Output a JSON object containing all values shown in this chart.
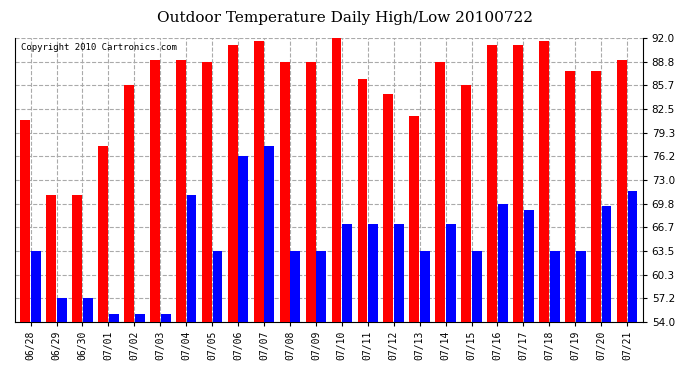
{
  "title": "Outdoor Temperature Daily High/Low 20100722",
  "copyright": "Copyright 2010 Cartronics.com",
  "dates": [
    "06/28",
    "06/29",
    "06/30",
    "07/01",
    "07/02",
    "07/03",
    "07/04",
    "07/05",
    "07/06",
    "07/07",
    "07/08",
    "07/09",
    "07/10",
    "07/11",
    "07/12",
    "07/13",
    "07/14",
    "07/15",
    "07/16",
    "07/17",
    "07/18",
    "07/19",
    "07/20",
    "07/21"
  ],
  "highs": [
    81.0,
    71.0,
    71.0,
    77.5,
    85.7,
    89.0,
    89.0,
    88.8,
    91.0,
    91.5,
    88.8,
    88.8,
    92.0,
    86.5,
    84.5,
    81.5,
    88.8,
    85.7,
    91.0,
    91.0,
    91.5,
    87.5,
    87.5,
    89.0
  ],
  "lows": [
    63.5,
    57.2,
    57.2,
    55.0,
    55.0,
    55.0,
    71.0,
    63.5,
    76.2,
    77.5,
    63.5,
    63.5,
    67.0,
    67.0,
    67.0,
    63.5,
    67.0,
    63.5,
    69.8,
    69.0,
    63.5,
    63.5,
    69.5,
    71.5
  ],
  "high_color": "#ff0000",
  "low_color": "#0000ff",
  "bg_color": "#ffffff",
  "grid_color": "#aaaaaa",
  "yticks": [
    54.0,
    57.2,
    60.3,
    63.5,
    66.7,
    69.8,
    73.0,
    76.2,
    79.3,
    82.5,
    85.7,
    88.8,
    92.0
  ],
  "ymin": 54.0,
  "ymax": 92.0
}
